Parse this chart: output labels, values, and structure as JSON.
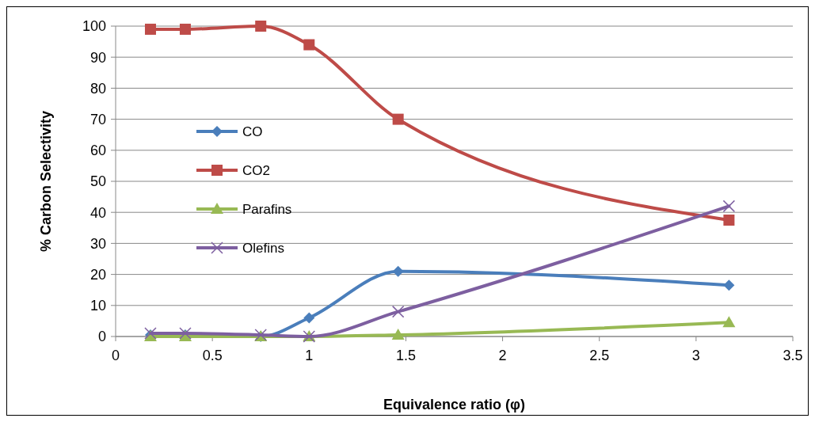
{
  "chart_data": {
    "type": "line",
    "xlabel": "Equivalence ratio (φ)",
    "ylabel": "% Carbon Selectivity",
    "x": [
      0.18,
      0.36,
      0.75,
      1.0,
      1.46,
      3.17
    ],
    "xlim": [
      0,
      3.5
    ],
    "xticks": [
      0,
      0.5,
      1,
      1.5,
      2,
      2.5,
      3,
      3.5
    ],
    "ylim": [
      0,
      100
    ],
    "yticks": [
      0,
      10,
      20,
      30,
      40,
      50,
      60,
      70,
      80,
      90,
      100
    ],
    "grid": "y",
    "legend": "left",
    "series": [
      {
        "name": "CO",
        "color": "#4a7ebb",
        "marker": "diamond",
        "values": [
          0.5,
          0.5,
          0,
          6,
          21,
          16.5
        ]
      },
      {
        "name": "CO2",
        "color": "#be4b48",
        "marker": "square",
        "values": [
          99,
          99,
          100,
          94,
          70,
          37.5
        ]
      },
      {
        "name": "Parafins",
        "color": "#98b954",
        "marker": "triangle",
        "values": [
          0,
          0,
          0,
          0,
          0.5,
          4.5
        ]
      },
      {
        "name": "Olefins",
        "color": "#7d5fa0",
        "marker": "cross",
        "values": [
          1,
          1,
          0.5,
          0,
          8,
          42
        ]
      }
    ]
  }
}
